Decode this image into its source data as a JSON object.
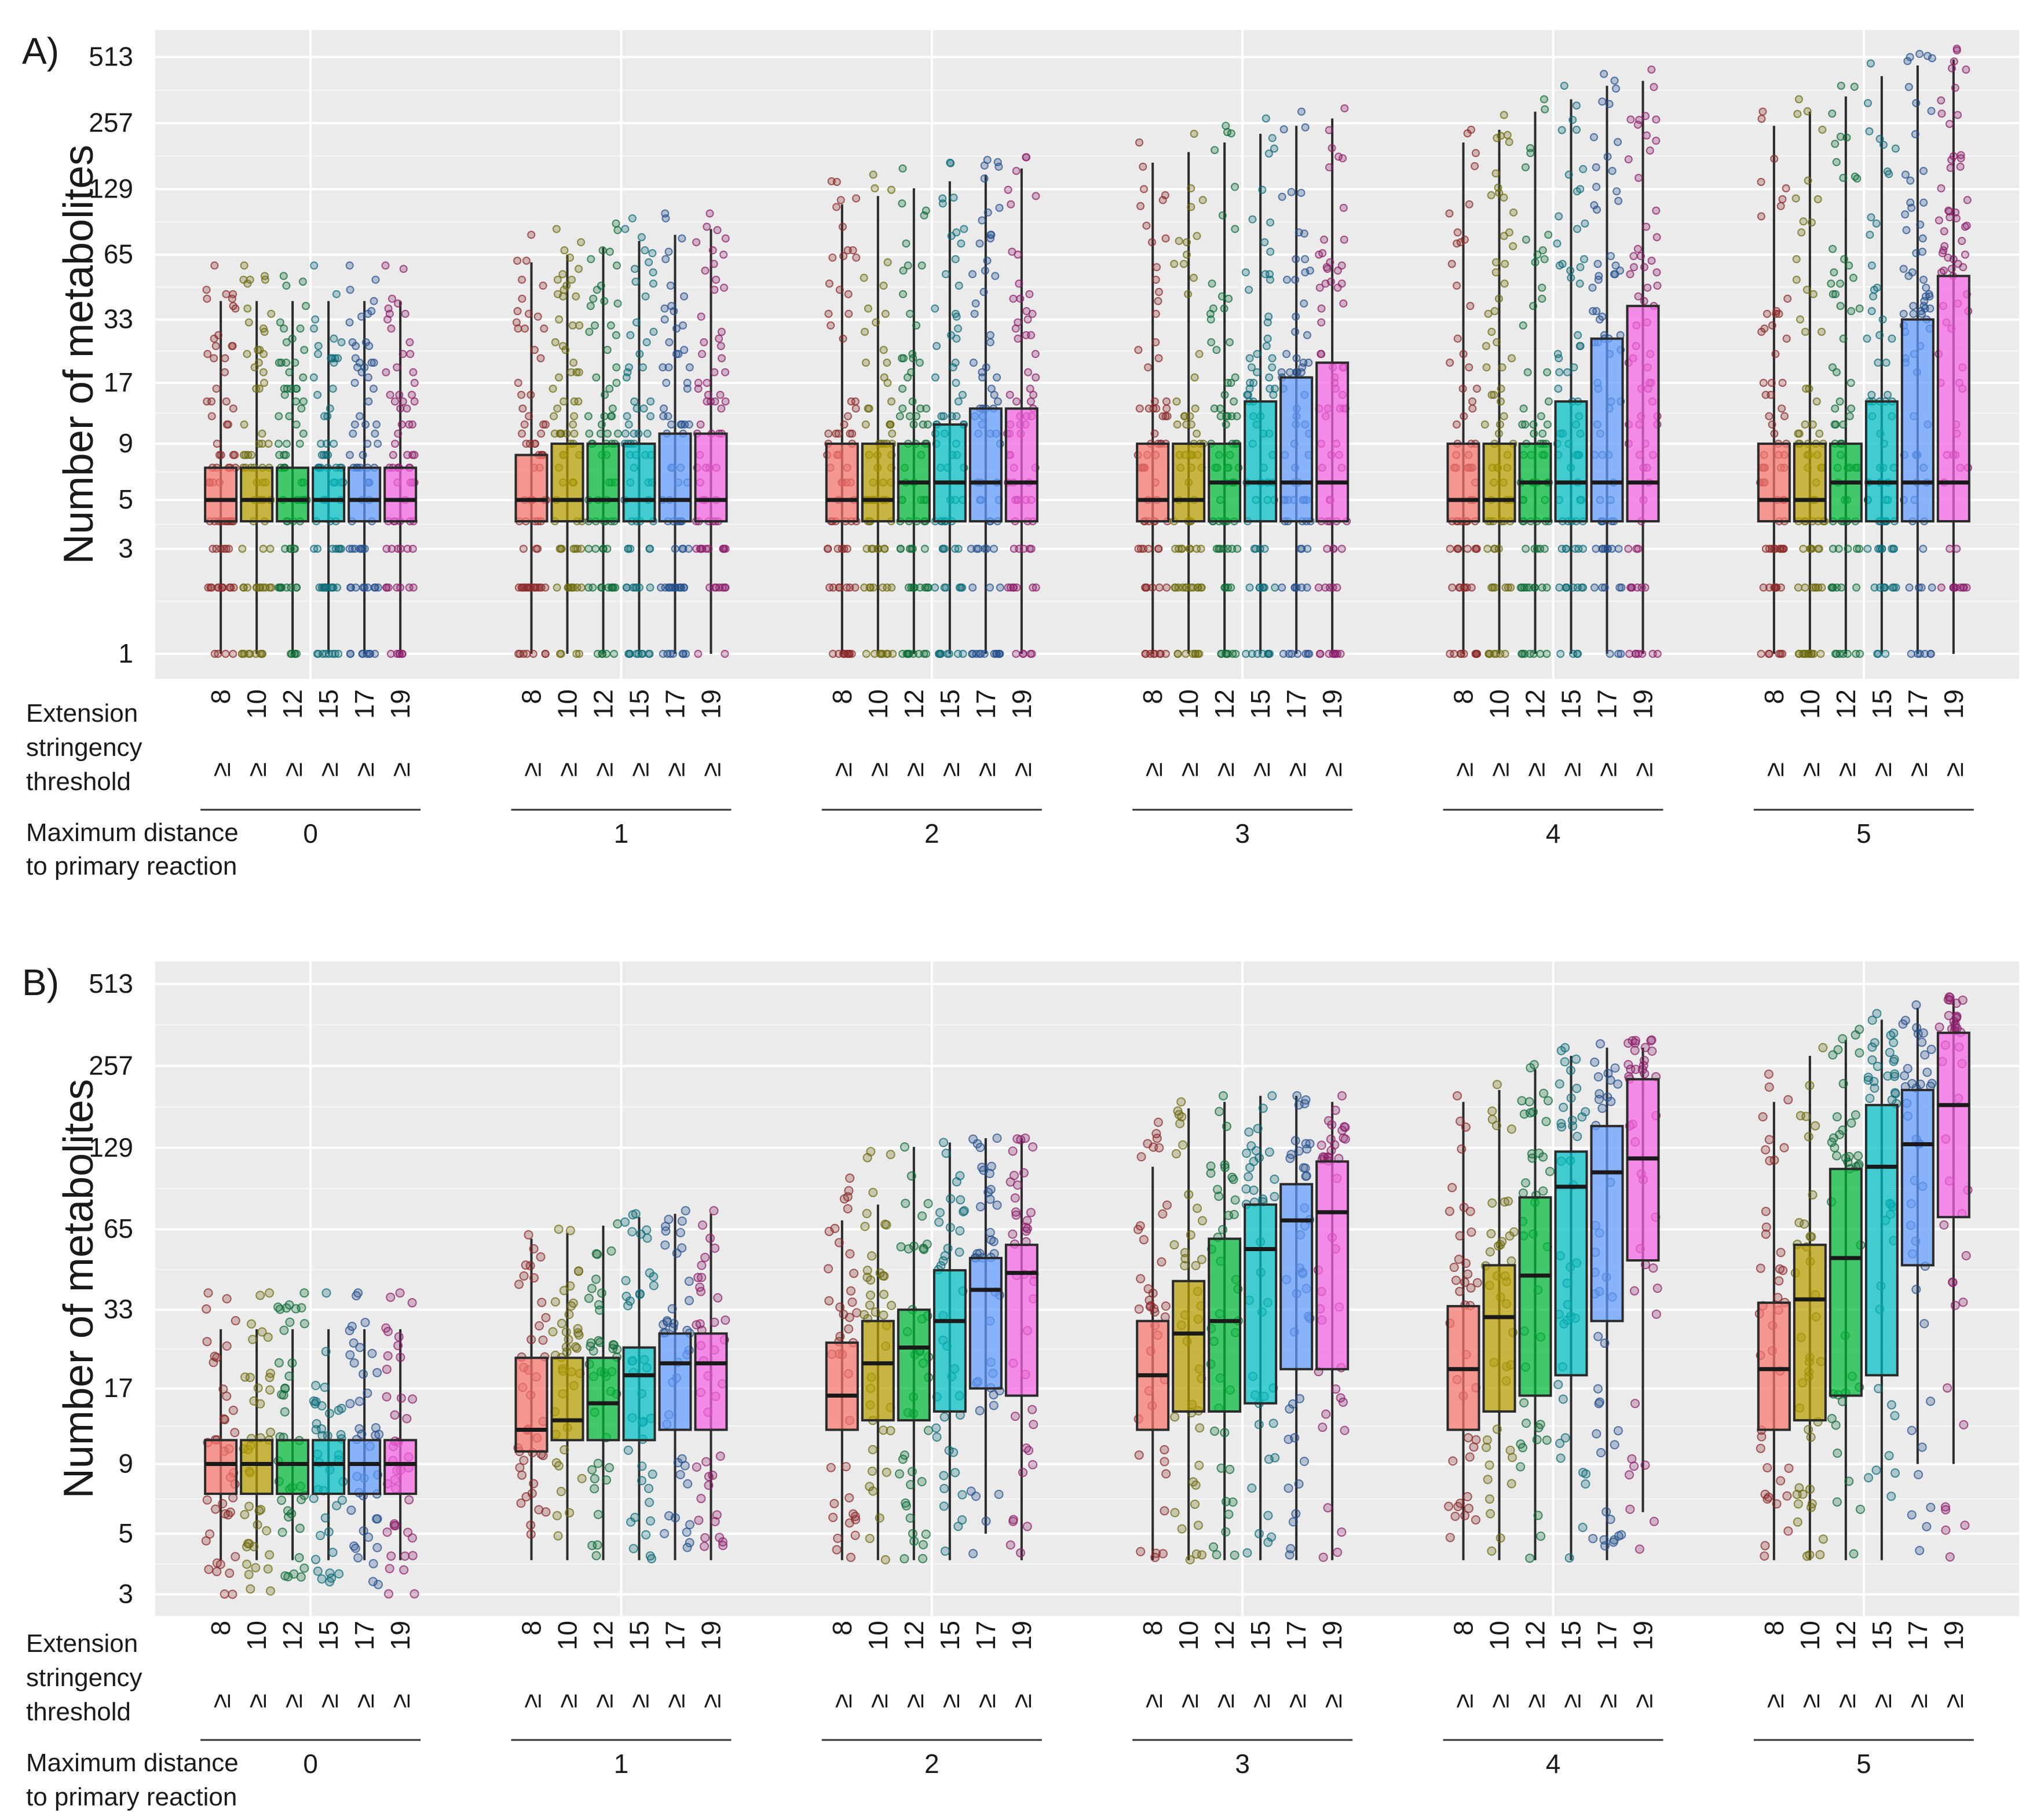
{
  "figure": {
    "panel_labels": [
      "A)",
      "B)"
    ],
    "y_label": "Number of metabolites",
    "extension_label": [
      "Extension",
      "stringency",
      "threshold"
    ],
    "distance_label": [
      "Maximum distance",
      "to primary reaction"
    ],
    "threshold_prefix": "≥"
  },
  "chart_data": [
    {
      "type": "box",
      "panel": "A)",
      "title": "",
      "ylabel": "Number of metabolites",
      "y_scale": "log2",
      "y_ticks": [
        1,
        3,
        5,
        9,
        17,
        33,
        65,
        129,
        257,
        513
      ],
      "ylim": [
        0.77,
        680
      ],
      "groups": [
        "0",
        "1",
        "2",
        "3",
        "4",
        "5"
      ],
      "group_title": "Maximum distance to primary reaction",
      "categories": [
        "8",
        "10",
        "12",
        "15",
        "17",
        "19"
      ],
      "category_title": "Extension stringency threshold",
      "colors": [
        "#F8766D",
        "#B79F00",
        "#00BA38",
        "#00BFC4",
        "#619CFF",
        "#F564E3"
      ],
      "point_colors": [
        "#8B2A2A",
        "#6E6A10",
        "#0F6B35",
        "#0E6B78",
        "#24508C",
        "#8C1F6B"
      ],
      "series": [
        {
          "group": "0",
          "boxes": [
            {
              "q1": 4,
              "median": 5,
              "q3": 7,
              "wmin": 1,
              "wmax": 40,
              "pmin": 1,
              "pmax": 58
            },
            {
              "q1": 4,
              "median": 5,
              "q3": 7,
              "wmin": 1,
              "wmax": 40,
              "pmin": 1,
              "pmax": 58
            },
            {
              "q1": 4,
              "median": 5,
              "q3": 7,
              "wmin": 1,
              "wmax": 40,
              "pmin": 1,
              "pmax": 52
            },
            {
              "q1": 4,
              "median": 5,
              "q3": 7,
              "wmin": 1,
              "wmax": 40,
              "pmin": 1,
              "pmax": 58
            },
            {
              "q1": 4,
              "median": 5,
              "q3": 7,
              "wmin": 1,
              "wmax": 40,
              "pmin": 1,
              "pmax": 58
            },
            {
              "q1": 4,
              "median": 5,
              "q3": 7,
              "wmin": 1,
              "wmax": 40,
              "pmin": 1,
              "pmax": 58
            }
          ]
        },
        {
          "group": "1",
          "boxes": [
            {
              "q1": 4,
              "median": 5,
              "q3": 8,
              "wmin": 1,
              "wmax": 60,
              "pmin": 1,
              "pmax": 80
            },
            {
              "q1": 4,
              "median": 5,
              "q3": 9,
              "wmin": 1,
              "wmax": 65,
              "pmin": 1,
              "pmax": 85
            },
            {
              "q1": 4,
              "median": 5,
              "q3": 9,
              "wmin": 1,
              "wmax": 70,
              "pmin": 1,
              "pmax": 90
            },
            {
              "q1": 4,
              "median": 5,
              "q3": 9,
              "wmin": 1,
              "wmax": 75,
              "pmin": 1,
              "pmax": 95
            },
            {
              "q1": 4,
              "median": 5,
              "q3": 10,
              "wmin": 1,
              "wmax": 80,
              "pmin": 1,
              "pmax": 100
            },
            {
              "q1": 4,
              "median": 5,
              "q3": 10,
              "wmin": 1,
              "wmax": 85,
              "pmin": 1,
              "pmax": 100
            }
          ]
        },
        {
          "group": "2",
          "boxes": [
            {
              "q1": 4,
              "median": 5,
              "q3": 9,
              "wmin": 1,
              "wmax": 110,
              "pmin": 1,
              "pmax": 140
            },
            {
              "q1": 4,
              "median": 5,
              "q3": 9,
              "wmin": 1,
              "wmax": 120,
              "pmin": 1,
              "pmax": 150
            },
            {
              "q1": 4,
              "median": 6,
              "q3": 9,
              "wmin": 1,
              "wmax": 130,
              "pmin": 1,
              "pmax": 160
            },
            {
              "q1": 4,
              "median": 6,
              "q3": 11,
              "wmin": 1,
              "wmax": 140,
              "pmin": 1,
              "pmax": 170
            },
            {
              "q1": 4,
              "median": 6,
              "q3": 13,
              "wmin": 1,
              "wmax": 150,
              "pmin": 1,
              "pmax": 175
            },
            {
              "q1": 4,
              "median": 6,
              "q3": 13,
              "wmin": 1,
              "wmax": 160,
              "pmin": 1,
              "pmax": 180
            }
          ]
        },
        {
          "group": "3",
          "boxes": [
            {
              "q1": 4,
              "median": 5,
              "q3": 9,
              "wmin": 1,
              "wmax": 170,
              "pmin": 1,
              "pmax": 210
            },
            {
              "q1": 4,
              "median": 5,
              "q3": 9,
              "wmin": 1,
              "wmax": 190,
              "pmin": 1,
              "pmax": 230
            },
            {
              "q1": 4,
              "median": 6,
              "q3": 9,
              "wmin": 1,
              "wmax": 210,
              "pmin": 1,
              "pmax": 250
            },
            {
              "q1": 4,
              "median": 6,
              "q3": 14,
              "wmin": 1,
              "wmax": 230,
              "pmin": 1,
              "pmax": 270
            },
            {
              "q1": 4,
              "median": 6,
              "q3": 18,
              "wmin": 1,
              "wmax": 250,
              "pmin": 1,
              "pmax": 290
            },
            {
              "q1": 4,
              "median": 6,
              "q3": 21,
              "wmin": 1,
              "wmax": 270,
              "pmin": 1,
              "pmax": 300
            }
          ]
        },
        {
          "group": "4",
          "boxes": [
            {
              "q1": 4,
              "median": 5,
              "q3": 9,
              "wmin": 1,
              "wmax": 210,
              "pmin": 1,
              "pmax": 240
            },
            {
              "q1": 4,
              "median": 5,
              "q3": 9,
              "wmin": 1,
              "wmax": 240,
              "pmin": 1,
              "pmax": 280
            },
            {
              "q1": 4,
              "median": 6,
              "q3": 9,
              "wmin": 1,
              "wmax": 290,
              "pmin": 1,
              "pmax": 330
            },
            {
              "q1": 4,
              "median": 6,
              "q3": 14,
              "wmin": 1,
              "wmax": 330,
              "pmin": 1,
              "pmax": 380
            },
            {
              "q1": 4,
              "median": 6,
              "q3": 27,
              "wmin": 1,
              "wmax": 380,
              "pmin": 1,
              "pmax": 430
            },
            {
              "q1": 4,
              "median": 6,
              "q3": 38,
              "wmin": 1,
              "wmax": 400,
              "pmin": 1,
              "pmax": 450
            }
          ]
        },
        {
          "group": "5",
          "boxes": [
            {
              "q1": 4,
              "median": 5,
              "q3": 9,
              "wmin": 1,
              "wmax": 250,
              "pmin": 1,
              "pmax": 290
            },
            {
              "q1": 4,
              "median": 5,
              "q3": 9,
              "wmin": 1,
              "wmax": 290,
              "pmin": 1,
              "pmax": 330
            },
            {
              "q1": 4,
              "median": 6,
              "q3": 9,
              "wmin": 1,
              "wmax": 340,
              "pmin": 1,
              "pmax": 380
            },
            {
              "q1": 4,
              "median": 6,
              "q3": 14,
              "wmin": 1,
              "wmax": 420,
              "pmin": 1,
              "pmax": 480
            },
            {
              "q1": 4,
              "median": 6,
              "q3": 33,
              "wmin": 1,
              "wmax": 470,
              "pmin": 1,
              "pmax": 530
            },
            {
              "q1": 4,
              "median": 6,
              "q3": 52,
              "wmin": 1,
              "wmax": 500,
              "pmin": 1,
              "pmax": 560
            }
          ]
        }
      ]
    },
    {
      "type": "box",
      "panel": "B)",
      "title": "",
      "ylabel": "Number of metabolites",
      "y_scale": "log2",
      "y_ticks": [
        3,
        5,
        9,
        17,
        33,
        65,
        129,
        257,
        513
      ],
      "ylim": [
        2.5,
        620
      ],
      "groups": [
        "0",
        "1",
        "2",
        "3",
        "4",
        "5"
      ],
      "group_title": "Maximum distance to primary reaction",
      "categories": [
        "8",
        "10",
        "12",
        "15",
        "17",
        "19"
      ],
      "category_title": "Extension stringency threshold",
      "colors": [
        "#F8766D",
        "#B79F00",
        "#00BA38",
        "#00BFC4",
        "#619CFF",
        "#F564E3"
      ],
      "point_colors": [
        "#8B2A2A",
        "#6E6A10",
        "#0F6B35",
        "#0E6B78",
        "#24508C",
        "#8C1F6B"
      ],
      "series": [
        {
          "group": "0",
          "boxes": [
            {
              "q1": 7,
              "median": 9,
              "q3": 11,
              "wmin": 4,
              "wmax": 28,
              "pmin": 3,
              "pmax": 38
            },
            {
              "q1": 7,
              "median": 9,
              "q3": 11,
              "wmin": 4,
              "wmax": 28,
              "pmin": 3,
              "pmax": 38
            },
            {
              "q1": 7,
              "median": 9,
              "q3": 11,
              "wmin": 4,
              "wmax": 28,
              "pmin": 3,
              "pmax": 38
            },
            {
              "q1": 7,
              "median": 9,
              "q3": 11,
              "wmin": 4,
              "wmax": 28,
              "pmin": 3,
              "pmax": 38
            },
            {
              "q1": 7,
              "median": 9,
              "q3": 11,
              "wmin": 4,
              "wmax": 28,
              "pmin": 3,
              "pmax": 38
            },
            {
              "q1": 7,
              "median": 9,
              "q3": 11,
              "wmin": 4,
              "wmax": 28,
              "pmin": 3,
              "pmax": 38
            }
          ]
        },
        {
          "group": "1",
          "boxes": [
            {
              "q1": 10,
              "median": 12,
              "q3": 22,
              "wmin": 4,
              "wmax": 60,
              "pmin": 4,
              "pmax": 62
            },
            {
              "q1": 11,
              "median": 13,
              "q3": 22,
              "wmin": 4,
              "wmax": 63,
              "pmin": 4,
              "pmax": 65
            },
            {
              "q1": 11,
              "median": 15,
              "q3": 22,
              "wmin": 4,
              "wmax": 67,
              "pmin": 4,
              "pmax": 68
            },
            {
              "q1": 11,
              "median": 19,
              "q3": 24,
              "wmin": 4,
              "wmax": 72,
              "pmin": 4,
              "pmax": 74
            },
            {
              "q1": 12,
              "median": 21,
              "q3": 27,
              "wmin": 4,
              "wmax": 74,
              "pmin": 4,
              "pmax": 76
            },
            {
              "q1": 12,
              "median": 21,
              "q3": 27,
              "wmin": 4,
              "wmax": 74,
              "pmin": 4,
              "pmax": 76
            }
          ]
        },
        {
          "group": "2",
          "boxes": [
            {
              "q1": 12,
              "median": 16,
              "q3": 25,
              "wmin": 4,
              "wmax": 70,
              "pmin": 4,
              "pmax": 100
            },
            {
              "q1": 13,
              "median": 21,
              "q3": 30,
              "wmin": 4,
              "wmax": 80,
              "pmin": 4,
              "pmax": 125
            },
            {
              "q1": 13,
              "median": 24,
              "q3": 33,
              "wmin": 4,
              "wmax": 130,
              "pmin": 4,
              "pmax": 130
            },
            {
              "q1": 14,
              "median": 30,
              "q3": 46,
              "wmin": 4,
              "wmax": 135,
              "pmin": 4,
              "pmax": 135
            },
            {
              "q1": 17,
              "median": 39,
              "q3": 51,
              "wmin": 5,
              "wmax": 140,
              "pmin": 4,
              "pmax": 140
            },
            {
              "q1": 16,
              "median": 45,
              "q3": 57,
              "wmin": 4,
              "wmax": 140,
              "pmin": 4,
              "pmax": 140
            }
          ]
        },
        {
          "group": "3",
          "boxes": [
            {
              "q1": 12,
              "median": 19,
              "q3": 30,
              "wmin": 4,
              "wmax": 110,
              "pmin": 4,
              "pmax": 160
            },
            {
              "q1": 14,
              "median": 27,
              "q3": 42,
              "wmin": 4,
              "wmax": 180,
              "pmin": 4,
              "pmax": 190
            },
            {
              "q1": 14,
              "median": 30,
              "q3": 60,
              "wmin": 4,
              "wmax": 190,
              "pmin": 4,
              "pmax": 200
            },
            {
              "q1": 15,
              "median": 55,
              "q3": 80,
              "wmin": 4,
              "wmax": 200,
              "pmin": 4,
              "pmax": 200
            },
            {
              "q1": 20,
              "median": 70,
              "q3": 95,
              "wmin": 4,
              "wmax": 200,
              "pmin": 4,
              "pmax": 200
            },
            {
              "q1": 20,
              "median": 75,
              "q3": 115,
              "wmin": 4,
              "wmax": 190,
              "pmin": 4,
              "pmax": 200
            }
          ]
        },
        {
          "group": "4",
          "boxes": [
            {
              "q1": 12,
              "median": 20,
              "q3": 34,
              "wmin": 4,
              "wmax": 190,
              "pmin": 4,
              "pmax": 200
            },
            {
              "q1": 14,
              "median": 31,
              "q3": 48,
              "wmin": 4,
              "wmax": 210,
              "pmin": 4,
              "pmax": 220
            },
            {
              "q1": 16,
              "median": 44,
              "q3": 85,
              "wmin": 4,
              "wmax": 250,
              "pmin": 4,
              "pmax": 260
            },
            {
              "q1": 19,
              "median": 93,
              "q3": 125,
              "wmin": 4,
              "wmax": 280,
              "pmin": 4,
              "pmax": 300
            },
            {
              "q1": 30,
              "median": 105,
              "q3": 155,
              "wmin": 4,
              "wmax": 300,
              "pmin": 4,
              "pmax": 310
            },
            {
              "q1": 50,
              "median": 118,
              "q3": 230,
              "wmin": 6,
              "wmax": 300,
              "pmin": 4,
              "pmax": 320
            }
          ]
        },
        {
          "group": "5",
          "boxes": [
            {
              "q1": 12,
              "median": 20,
              "q3": 35,
              "wmin": 4,
              "wmax": 190,
              "pmin": 4,
              "pmax": 240
            },
            {
              "q1": 13,
              "median": 36,
              "q3": 57,
              "wmin": 4,
              "wmax": 280,
              "pmin": 4,
              "pmax": 300
            },
            {
              "q1": 16,
              "median": 51,
              "q3": 108,
              "wmin": 4,
              "wmax": 320,
              "pmin": 4,
              "pmax": 350
            },
            {
              "q1": 19,
              "median": 110,
              "q3": 185,
              "wmin": 4,
              "wmax": 380,
              "pmin": 4,
              "pmax": 400
            },
            {
              "q1": 48,
              "median": 133,
              "q3": 210,
              "wmin": 9,
              "wmax": 420,
              "pmin": 4,
              "pmax": 430
            },
            {
              "q1": 72,
              "median": 185,
              "q3": 340,
              "wmin": 9,
              "wmax": 450,
              "pmin": 4,
              "pmax": 460
            }
          ]
        }
      ]
    }
  ]
}
